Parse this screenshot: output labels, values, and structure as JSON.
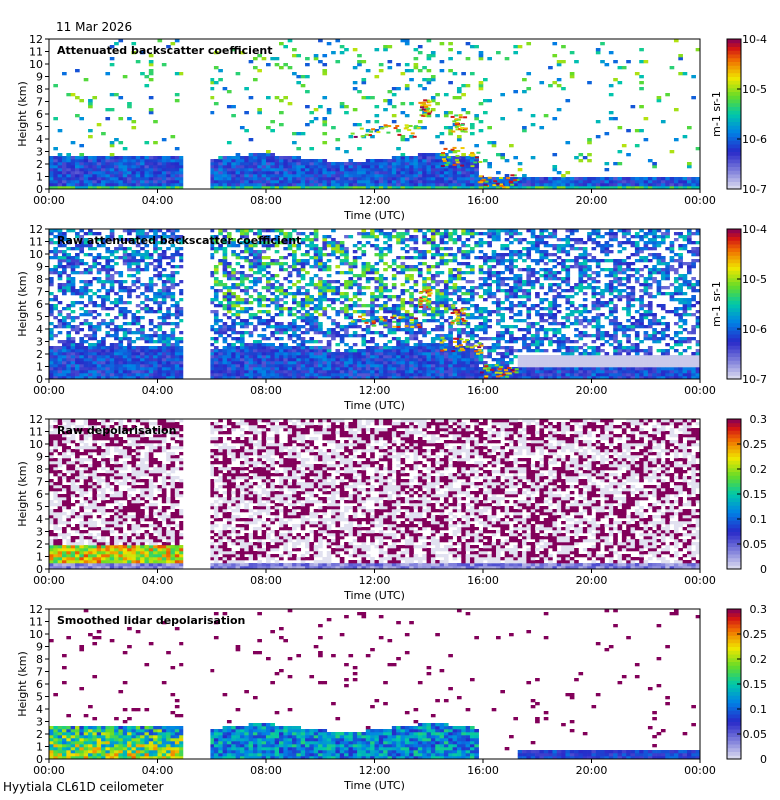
{
  "date_label": "11 Mar 2026",
  "instrument_label": "Hyytiala CL61D ceilometer",
  "chart_data": [
    {
      "type": "heatmap",
      "title": "Attenuated backscatter coefficient",
      "xlabel": "Time (UTC)",
      "ylabel": "Height (km)",
      "xticks": [
        "00:00",
        "04:00",
        "08:00",
        "12:00",
        "16:00",
        "20:00",
        "00:00"
      ],
      "xlim_hours": [
        0,
        24
      ],
      "ylim": [
        0,
        12
      ],
      "yticks": [
        "0",
        "1",
        "2",
        "3",
        "4",
        "5",
        "6",
        "7",
        "8",
        "9",
        "10",
        "11",
        "12"
      ],
      "colorbar": {
        "scale": "log",
        "unit": "m-1 sr-1",
        "ticks": [
          "10-7",
          "10-6",
          "10-5",
          "10-4"
        ],
        "range": [
          1e-07,
          0.0001
        ]
      },
      "data_gap_hours": [
        4.95,
        5.95
      ],
      "features": [
        {
          "kind": "boundary layer",
          "start": 0,
          "end": 4.95,
          "top_km": 2.6
        },
        {
          "kind": "boundary layer",
          "start": 5.95,
          "end": 15.8,
          "top_km": 2.5
        },
        {
          "kind": "cloud layer",
          "start": 11.0,
          "end": 13.5,
          "height_km": 4.8
        },
        {
          "kind": "cloud layer",
          "start": 14.5,
          "end": 15.8,
          "height_km": 2.5
        },
        {
          "kind": "cloud base",
          "start": 15.8,
          "end": 17.2,
          "height_km": 0.6
        }
      ]
    },
    {
      "type": "heatmap",
      "title": "Raw attenuated backscatter coefficient",
      "xlabel": "Time (UTC)",
      "ylabel": "Height (km)",
      "xticks": [
        "00:00",
        "04:00",
        "08:00",
        "12:00",
        "16:00",
        "20:00",
        "00:00"
      ],
      "xlim_hours": [
        0,
        24
      ],
      "ylim": [
        0,
        12
      ],
      "yticks": [
        "0",
        "1",
        "2",
        "3",
        "4",
        "5",
        "6",
        "7",
        "8",
        "9",
        "10",
        "11",
        "12"
      ],
      "colorbar": {
        "scale": "log",
        "unit": "m-1 sr-1",
        "ticks": [
          "10-7",
          "10-6",
          "10-5",
          "10-4"
        ],
        "range": [
          1e-07,
          0.0001
        ]
      },
      "data_gap_hours": [
        4.95,
        5.95
      ]
    },
    {
      "type": "heatmap",
      "title": "Raw depolarisation",
      "xlabel": "Time (UTC)",
      "ylabel": "Height (km)",
      "xticks": [
        "00:00",
        "04:00",
        "08:00",
        "12:00",
        "16:00",
        "20:00",
        "00:00"
      ],
      "xlim_hours": [
        0,
        24
      ],
      "ylim": [
        0,
        12
      ],
      "yticks": [
        "0",
        "1",
        "2",
        "3",
        "4",
        "5",
        "6",
        "7",
        "8",
        "9",
        "10",
        "11",
        "12"
      ],
      "colorbar": {
        "scale": "linear",
        "unit": "",
        "ticks": [
          "0",
          "0.05",
          "0.1",
          "0.15",
          "0.2",
          "0.25",
          "0.3"
        ],
        "range": [
          0,
          0.3
        ]
      },
      "data_gap_hours": [
        4.95,
        5.95
      ]
    },
    {
      "type": "heatmap",
      "title": "Smoothed lidar depolarisation",
      "xlabel": "Time (UTC)",
      "ylabel": "Height (km)",
      "xticks": [
        "00:00",
        "04:00",
        "08:00",
        "12:00",
        "16:00",
        "20:00",
        "00:00"
      ],
      "xlim_hours": [
        0,
        24
      ],
      "ylim": [
        0,
        12
      ],
      "yticks": [
        "0",
        "1",
        "2",
        "3",
        "4",
        "5",
        "6",
        "7",
        "8",
        "9",
        "10",
        "11",
        "12"
      ],
      "colorbar": {
        "scale": "linear",
        "unit": "",
        "ticks": [
          "0",
          "0.05",
          "0.1",
          "0.15",
          "0.2",
          "0.25",
          "0.3"
        ],
        "range": [
          0,
          0.3
        ]
      },
      "data_gap_hours": [
        4.95,
        5.95
      ]
    }
  ]
}
